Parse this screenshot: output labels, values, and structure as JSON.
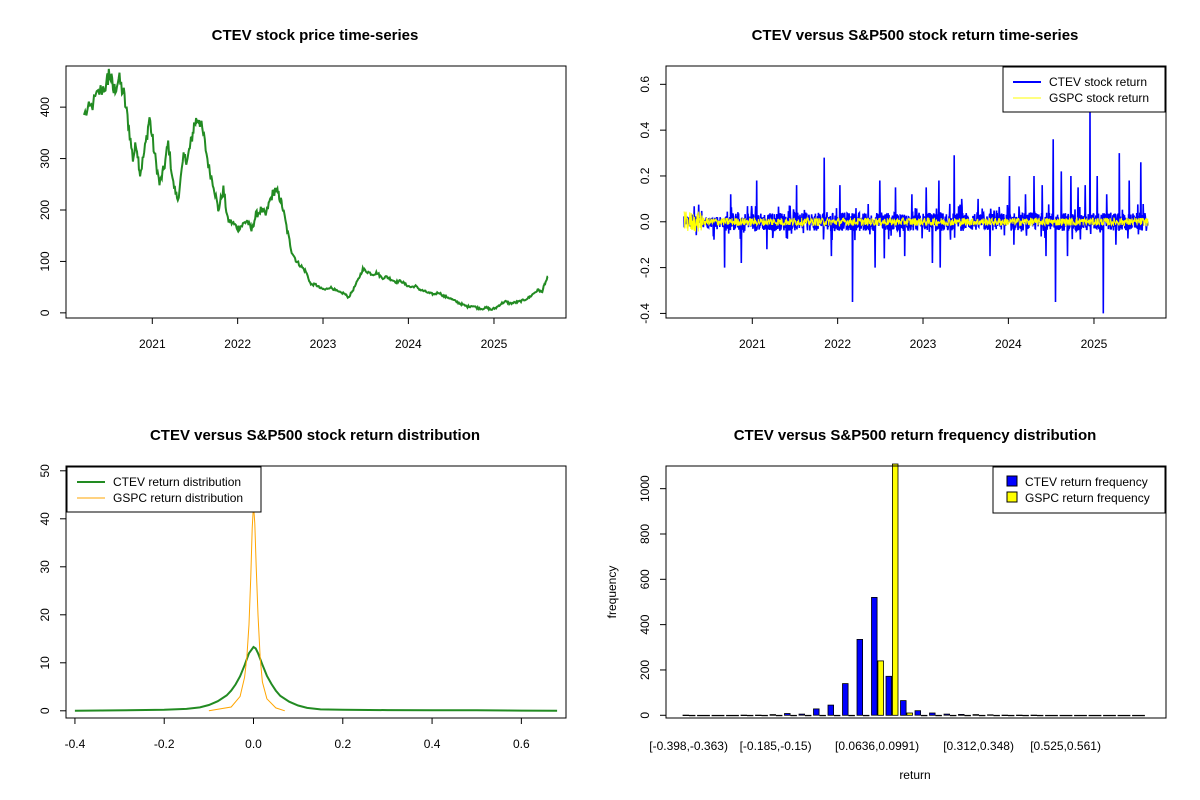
{
  "colors": {
    "price": "#228B22",
    "ctev_return": "#0000FF",
    "gspc_return": "#FFFF00",
    "ctev_density": "#228B22",
    "gspc_density": "#FFA500",
    "ctev_bars": "#0000FF",
    "gspc_bars": "#FFFF00"
  },
  "chart_data": [
    {
      "type": "line",
      "title": "CTEV stock price time-series",
      "xlabel": "",
      "ylabel": "",
      "x_range": [
        "2020-03-15",
        "2025-08-20"
      ],
      "ylim": [
        -10,
        480
      ],
      "x_tick_labels": [
        "2021",
        "2022",
        "2023",
        "2024",
        "2025"
      ],
      "y_tick_labels": [
        "0",
        "100",
        "200",
        "300",
        "400"
      ],
      "grid": false,
      "series": [
        {
          "x": [
            "2020-03-15",
            "2020-04-15",
            "2020-05-20",
            "2020-06-20",
            "2020-07-01",
            "2020-07-20",
            "2020-08-10",
            "2020-09-01",
            "2020-09-20",
            "2020-10-10",
            "2020-10-25",
            "2020-11-10",
            "2020-12-01",
            "2020-12-20",
            "2021-01-10",
            "2021-02-01",
            "2021-02-20",
            "2021-03-10",
            "2021-04-01",
            "2021-04-20",
            "2021-05-15",
            "2021-06-01",
            "2021-06-15",
            "2021-07-01",
            "2021-07-20",
            "2021-08-10",
            "2021-09-01",
            "2021-09-20",
            "2021-10-10",
            "2021-11-01",
            "2021-11-20",
            "2021-12-10",
            "2022-01-01",
            "2022-01-20",
            "2022-02-10",
            "2022-03-01",
            "2022-03-20",
            "2022-04-10",
            "2022-05-01",
            "2022-05-20",
            "2022-06-10",
            "2022-06-25",
            "2022-07-10",
            "2022-08-01",
            "2022-08-20",
            "2022-09-10",
            "2022-10-01",
            "2022-10-20",
            "2022-11-10",
            "2022-12-01",
            "2022-12-20",
            "2023-01-10",
            "2023-02-01",
            "2023-02-20",
            "2023-03-10",
            "2023-04-01",
            "2023-04-20",
            "2023-05-10",
            "2023-06-01",
            "2023-06-20",
            "2023-07-10",
            "2023-08-01",
            "2023-08-20",
            "2023-09-10",
            "2023-10-01",
            "2023-10-20",
            "2023-11-10",
            "2023-12-01",
            "2023-12-20",
            "2024-01-10",
            "2024-02-01",
            "2024-02-20",
            "2024-03-10",
            "2024-04-01",
            "2024-04-20",
            "2024-05-10",
            "2024-06-01",
            "2024-06-20",
            "2024-07-10",
            "2024-08-01",
            "2024-08-20",
            "2024-09-10",
            "2024-10-01",
            "2024-10-20",
            "2024-11-10",
            "2024-12-01",
            "2024-12-20",
            "2025-01-10",
            "2025-02-01",
            "2025-02-20",
            "2025-03-10",
            "2025-04-01",
            "2025-04-20",
            "2025-05-10",
            "2025-06-01",
            "2025-06-20",
            "2025-07-10",
            "2025-07-25",
            "2025-08-05",
            "2025-08-20"
          ],
          "y": [
            385,
            400,
            430,
            445,
            470,
            430,
            455,
            425,
            370,
            300,
            330,
            270,
            320,
            380,
            310,
            250,
            280,
            330,
            250,
            220,
            300,
            300,
            330,
            370,
            380,
            340,
            280,
            250,
            200,
            240,
            180,
            175,
            165,
            170,
            180,
            160,
            190,
            200,
            190,
            220,
            240,
            230,
            210,
            160,
            120,
            100,
            90,
            80,
            55,
            55,
            48,
            45,
            50,
            45,
            40,
            38,
            30,
            45,
            65,
            85,
            80,
            75,
            78,
            68,
            70,
            65,
            60,
            62,
            55,
            50,
            52,
            45,
            42,
            38,
            36,
            40,
            32,
            30,
            25,
            20,
            16,
            12,
            14,
            10,
            8,
            10,
            6,
            10,
            18,
            22,
            18,
            20,
            22,
            25,
            30,
            38,
            45,
            40,
            55,
            70
          ]
        }
      ]
    },
    {
      "type": "line",
      "title": "CTEV versus S&P500 stock return time-series",
      "xlabel": "",
      "ylabel": "",
      "x_range": [
        "2020-03-15",
        "2025-08-20"
      ],
      "ylim": [
        -0.42,
        0.68
      ],
      "x_tick_labels": [
        "2021",
        "2022",
        "2023",
        "2024",
        "2025"
      ],
      "y_tick_labels": [
        "-0.4",
        "-0.2",
        "0.0",
        "0.2",
        "0.4",
        "0.6"
      ],
      "legend": {
        "position": "top-right",
        "entries": [
          "CTEV stock return",
          "GSPC stock return"
        ]
      },
      "grid": false,
      "series": [
        {
          "name": "CTEV stock return",
          "spikes": [
            [
              "2020-09-05",
              -0.2
            ],
            [
              "2020-10-01",
              0.12
            ],
            [
              "2020-11-15",
              -0.18
            ],
            [
              "2021-01-20",
              0.18
            ],
            [
              "2021-03-05",
              -0.12
            ],
            [
              "2021-07-10",
              0.16
            ],
            [
              "2021-11-05",
              0.28
            ],
            [
              "2021-12-05",
              -0.15
            ],
            [
              "2022-01-10",
              0.16
            ],
            [
              "2022-03-05",
              -0.35
            ],
            [
              "2022-06-10",
              -0.2
            ],
            [
              "2022-07-01",
              0.18
            ],
            [
              "2022-07-20",
              -0.16
            ],
            [
              "2022-09-05",
              0.15
            ],
            [
              "2022-10-15",
              -0.15
            ],
            [
              "2022-11-15",
              0.12
            ],
            [
              "2023-01-15",
              0.15
            ],
            [
              "2023-02-10",
              -0.18
            ],
            [
              "2023-03-10",
              0.18
            ],
            [
              "2023-03-15",
              -0.2
            ],
            [
              "2023-05-15",
              0.29
            ],
            [
              "2023-06-15",
              0.1
            ],
            [
              "2023-08-25",
              0.1
            ],
            [
              "2023-10-15",
              -0.15
            ],
            [
              "2024-01-05",
              0.2
            ],
            [
              "2024-01-25",
              -0.1
            ],
            [
              "2024-03-15",
              0.12
            ],
            [
              "2024-04-20",
              0.2
            ],
            [
              "2024-05-25",
              0.16
            ],
            [
              "2024-06-10",
              -0.15
            ],
            [
              "2024-07-10",
              0.36
            ],
            [
              "2024-07-20",
              -0.35
            ],
            [
              "2024-08-15",
              0.22
            ],
            [
              "2024-09-10",
              -0.15
            ],
            [
              "2024-09-25",
              0.2
            ],
            [
              "2024-10-25",
              0.15
            ],
            [
              "2024-11-25",
              0.16
            ],
            [
              "2024-12-15",
              0.5
            ],
            [
              "2025-01-15",
              0.2
            ],
            [
              "2025-02-10",
              -0.4
            ],
            [
              "2025-02-25",
              0.12
            ],
            [
              "2025-04-05",
              -0.1
            ],
            [
              "2025-04-20",
              0.3
            ],
            [
              "2025-06-01",
              0.18
            ],
            [
              "2025-07-20",
              0.26
            ]
          ]
        },
        {
          "name": "GSPC stock return",
          "typical_range": [
            -0.05,
            0.07
          ]
        }
      ]
    },
    {
      "type": "line",
      "title": "CTEV versus S&P500 stock return distribution",
      "xlabel": "",
      "ylabel": "",
      "xlim": [
        -0.42,
        0.7
      ],
      "ylim": [
        -1.5,
        51
      ],
      "x_tick_labels": [
        "-0.4",
        "-0.2",
        "0.0",
        "0.2",
        "0.4",
        "0.6"
      ],
      "y_tick_labels": [
        "0",
        "10",
        "20",
        "30",
        "40",
        "50"
      ],
      "legend": {
        "position": "top-left",
        "entries": [
          "CTEV return distribution",
          "GSPC return distribution"
        ]
      },
      "grid": false,
      "series": [
        {
          "name": "CTEV return distribution",
          "x": [
            -0.4,
            -0.2,
            -0.15,
            -0.12,
            -0.1,
            -0.08,
            -0.06,
            -0.05,
            -0.04,
            -0.03,
            -0.02,
            -0.01,
            0.0,
            0.005,
            0.01,
            0.02,
            0.03,
            0.04,
            0.05,
            0.06,
            0.08,
            0.1,
            0.12,
            0.15,
            0.2,
            0.3,
            0.4,
            0.5,
            0.6,
            0.68
          ],
          "y": [
            0,
            0.2,
            0.4,
            0.7,
            1.2,
            2,
            3.2,
            4.2,
            5.5,
            7.2,
            9.5,
            12,
            13.3,
            13,
            12,
            9.6,
            7.3,
            5.6,
            4.2,
            3.1,
            1.9,
            1.1,
            0.6,
            0.3,
            0.2,
            0.15,
            0.1,
            0.1,
            0.05,
            0
          ]
        },
        {
          "name": "GSPC return distribution",
          "x": [
            -0.1,
            -0.05,
            -0.03,
            -0.02,
            -0.015,
            -0.01,
            -0.006,
            -0.003,
            0.0,
            0.003,
            0.006,
            0.01,
            0.015,
            0.02,
            0.03,
            0.05,
            0.07
          ],
          "y": [
            0,
            0.8,
            3,
            7,
            11,
            18,
            28,
            38,
            43,
            39,
            30,
            20,
            11,
            6,
            2.5,
            0.6,
            0
          ]
        }
      ]
    },
    {
      "type": "bar",
      "title": "CTEV versus S&P500 return frequency distribution",
      "xlabel": "return",
      "ylabel": "frequency",
      "ylim": [
        0,
        1100
      ],
      "y_tick_labels": [
        "0",
        "200",
        "400",
        "600",
        "800",
        "1000"
      ],
      "x_tick_labels": [
        "[-0.398,-0.363)",
        "[-0.185,-0.15)",
        "[0.0636,0.0991)",
        "[0.312,0.348)",
        "[0.525,0.561)"
      ],
      "legend": {
        "position": "top-right",
        "entries": [
          "CTEV return frequency",
          "GSPC return frequency"
        ]
      },
      "grid": false,
      "series": [
        {
          "name": "CTEV return frequency",
          "values": [
            1,
            0,
            0,
            0,
            1,
            1,
            3,
            8,
            5,
            28,
            45,
            140,
            335,
            520,
            172,
            65,
            20,
            10,
            5,
            4,
            3,
            2,
            1,
            1,
            1,
            0,
            0,
            0,
            0,
            0,
            0,
            0
          ]
        },
        {
          "name": "GSPC return frequency",
          "values": [
            0,
            0,
            0,
            0,
            0,
            0,
            0,
            0,
            0,
            0,
            0,
            0,
            0,
            240,
            1100,
            10,
            0,
            0,
            0,
            0,
            0,
            0,
            0,
            0,
            0,
            0,
            0,
            0,
            0,
            0,
            0,
            0
          ]
        }
      ]
    }
  ]
}
